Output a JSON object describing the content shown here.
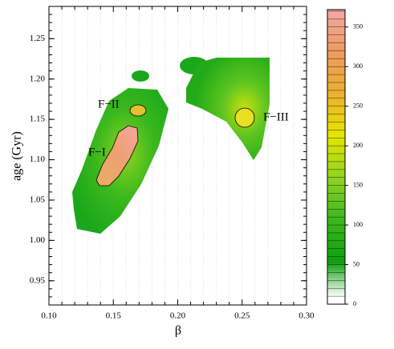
{
  "chart_data": {
    "type": "density",
    "xlabel": "β",
    "ylabel": "age (Gyr)",
    "xlim": [
      0.1,
      0.3
    ],
    "xticks": [
      {
        "value": 0.1,
        "label": "0.10"
      },
      {
        "value": 0.15,
        "label": "0.15"
      },
      {
        "value": 0.2,
        "label": "0.20"
      },
      {
        "value": 0.25,
        "label": "0.25"
      },
      {
        "value": 0.3,
        "label": "0.30"
      }
    ],
    "ylim": [
      0.92,
      1.29
    ],
    "yticks": [
      {
        "value": 0.95,
        "label": "0.95"
      },
      {
        "value": 1.0,
        "label": "1.00"
      },
      {
        "value": 1.05,
        "label": "1.05"
      },
      {
        "value": 1.1,
        "label": "1.10"
      },
      {
        "value": 1.15,
        "label": "1.15"
      },
      {
        "value": 1.2,
        "label": "1.20"
      },
      {
        "value": 1.25,
        "label": "1.25"
      }
    ],
    "grid": true,
    "annotations": [
      "F−I",
      "F−II",
      "F−III"
    ],
    "zlim": [
      0,
      372
    ],
    "zticks": [
      0,
      50,
      100,
      150,
      200,
      250,
      300,
      350
    ],
    "colormap": [
      "#ffffff",
      "#0fa00f",
      "#3bb81e",
      "#8fd420",
      "#e6e600",
      "#ecb030",
      "#ee9a60",
      "#f4a8a8"
    ]
  }
}
